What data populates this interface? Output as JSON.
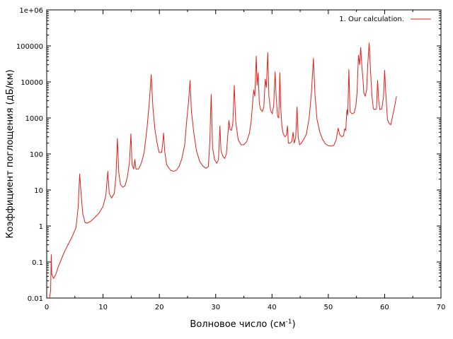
{
  "chart_data": {
    "type": "line",
    "title": "",
    "xlabel": "Волновое число (см",
    "xlabel_sup": "-1",
    "xlabel_close": ")",
    "ylabel": "Коэффициент поглощения (дБ/км)",
    "xlim": [
      0,
      70
    ],
    "ylim": [
      0.01,
      1000000
    ],
    "yscale": "log",
    "grid": false,
    "legend": "top-right",
    "x_ticks": [
      0,
      10,
      20,
      30,
      40,
      50,
      60,
      70
    ],
    "x_tick_labels": [
      "0",
      "10",
      "20",
      "30",
      "40",
      "50",
      "60",
      "70"
    ],
    "y_ticks": [
      0.01,
      0.1,
      1,
      10,
      100,
      1000,
      10000,
      100000,
      1000000
    ],
    "y_tick_labels": [
      "0.01",
      "0.1",
      "1",
      "10",
      "100",
      "1000",
      "10000",
      "100000",
      "1e+06"
    ],
    "series": [
      {
        "name": "1. Our calculation.",
        "color": "#e0201a",
        "points": [
          [
            0.5,
            0.01
          ],
          [
            0.7,
            0.016
          ],
          [
            0.8,
            0.16
          ],
          [
            0.9,
            0.045
          ],
          [
            1.2,
            0.035
          ],
          [
            1.6,
            0.045
          ],
          [
            2.0,
            0.07
          ],
          [
            2.5,
            0.11
          ],
          [
            3.0,
            0.17
          ],
          [
            3.5,
            0.25
          ],
          [
            4.0,
            0.35
          ],
          [
            4.5,
            0.5
          ],
          [
            5.2,
            0.9
          ],
          [
            5.6,
            3.5
          ],
          [
            5.85,
            28
          ],
          [
            6.1,
            8
          ],
          [
            6.4,
            2.2
          ],
          [
            6.8,
            1.25
          ],
          [
            7.2,
            1.2
          ],
          [
            7.8,
            1.35
          ],
          [
            8.5,
            1.7
          ],
          [
            9.3,
            2.3
          ],
          [
            10.0,
            3.5
          ],
          [
            10.5,
            7
          ],
          [
            10.85,
            33
          ],
          [
            11.1,
            8
          ],
          [
            11.5,
            6
          ],
          [
            12.0,
            8
          ],
          [
            12.3,
            25
          ],
          [
            12.55,
            270
          ],
          [
            12.8,
            30
          ],
          [
            13.1,
            14
          ],
          [
            13.5,
            12
          ],
          [
            13.9,
            13
          ],
          [
            14.3,
            22
          ],
          [
            14.7,
            60
          ],
          [
            14.95,
            360
          ],
          [
            15.15,
            50
          ],
          [
            15.45,
            38
          ],
          [
            15.65,
            70
          ],
          [
            15.85,
            38
          ],
          [
            16.3,
            38
          ],
          [
            16.8,
            55
          ],
          [
            17.3,
            110
          ],
          [
            17.8,
            500
          ],
          [
            18.2,
            2500
          ],
          [
            18.55,
            16000
          ],
          [
            18.85,
            2000
          ],
          [
            19.2,
            500
          ],
          [
            19.6,
            200
          ],
          [
            19.95,
            110
          ],
          [
            20.4,
            110
          ],
          [
            20.6,
            200
          ],
          [
            20.75,
            380
          ],
          [
            20.95,
            120
          ],
          [
            21.3,
            50
          ],
          [
            22.0,
            35
          ],
          [
            22.5,
            33
          ],
          [
            23.0,
            35
          ],
          [
            23.5,
            45
          ],
          [
            24.0,
            75
          ],
          [
            24.5,
            180
          ],
          [
            24.9,
            1000
          ],
          [
            25.2,
            3000
          ],
          [
            25.45,
            11000
          ],
          [
            25.7,
            1500
          ],
          [
            26.1,
            400
          ],
          [
            26.6,
            120
          ],
          [
            27.2,
            60
          ],
          [
            27.8,
            45
          ],
          [
            28.3,
            40
          ],
          [
            28.7,
            45
          ],
          [
            28.95,
            200
          ],
          [
            29.2,
            4500
          ],
          [
            29.45,
            150
          ],
          [
            29.8,
            70
          ],
          [
            30.2,
            55
          ],
          [
            30.5,
            70
          ],
          [
            30.75,
            600
          ],
          [
            30.95,
            120
          ],
          [
            31.3,
            85
          ],
          [
            31.6,
            75
          ],
          [
            31.9,
            100
          ],
          [
            32.1,
            250
          ],
          [
            32.35,
            850
          ],
          [
            32.55,
            480
          ],
          [
            32.8,
            450
          ],
          [
            33.05,
            700
          ],
          [
            33.3,
            8000
          ],
          [
            33.55,
            800
          ],
          [
            34.0,
            250
          ],
          [
            34.5,
            180
          ],
          [
            35.0,
            180
          ],
          [
            35.5,
            220
          ],
          [
            36.0,
            380
          ],
          [
            36.3,
            800
          ],
          [
            36.55,
            2500
          ],
          [
            36.75,
            6000
          ],
          [
            36.95,
            4000
          ],
          [
            37.2,
            52000
          ],
          [
            37.35,
            8000
          ],
          [
            37.55,
            18000
          ],
          [
            37.75,
            2500
          ],
          [
            38.0,
            1700
          ],
          [
            38.3,
            1500
          ],
          [
            38.55,
            2000
          ],
          [
            38.8,
            12000
          ],
          [
            39.0,
            7000
          ],
          [
            39.25,
            65000
          ],
          [
            39.45,
            4000
          ],
          [
            39.75,
            1600
          ],
          [
            40.05,
            1300
          ],
          [
            40.3,
            2200
          ],
          [
            40.55,
            19000
          ],
          [
            40.75,
            3500
          ],
          [
            41.0,
            1100
          ],
          [
            41.2,
            1000
          ],
          [
            41.4,
            18000
          ],
          [
            41.55,
            2000
          ],
          [
            41.75,
            600
          ],
          [
            42.0,
            360
          ],
          [
            42.3,
            300
          ],
          [
            42.55,
            330
          ],
          [
            42.75,
            600
          ],
          [
            42.9,
            200
          ],
          [
            43.2,
            200
          ],
          [
            43.5,
            220
          ],
          [
            43.75,
            400
          ],
          [
            43.95,
            200
          ],
          [
            44.2,
            280
          ],
          [
            44.45,
            2000
          ],
          [
            44.65,
            300
          ],
          [
            44.9,
            180
          ],
          [
            45.2,
            200
          ],
          [
            45.6,
            250
          ],
          [
            46.1,
            350
          ],
          [
            46.6,
            1000
          ],
          [
            47.0,
            5000
          ],
          [
            47.35,
            45000
          ],
          [
            47.65,
            4000
          ],
          [
            48.0,
            900
          ],
          [
            48.5,
            400
          ],
          [
            49.0,
            250
          ],
          [
            49.5,
            190
          ],
          [
            50.0,
            170
          ],
          [
            50.5,
            165
          ],
          [
            51.0,
            175
          ],
          [
            51.4,
            250
          ],
          [
            51.75,
            520
          ],
          [
            52.0,
            350
          ],
          [
            52.4,
            300
          ],
          [
            52.7,
            320
          ],
          [
            52.9,
            500
          ],
          [
            53.1,
            450
          ],
          [
            53.3,
            1700
          ],
          [
            53.45,
            1200
          ],
          [
            53.65,
            22000
          ],
          [
            53.85,
            1500
          ],
          [
            54.2,
            1300
          ],
          [
            54.6,
            1400
          ],
          [
            54.9,
            2200
          ],
          [
            55.1,
            5000
          ],
          [
            55.35,
            55000
          ],
          [
            55.55,
            30000
          ],
          [
            55.75,
            90000
          ],
          [
            55.95,
            28000
          ],
          [
            56.15,
            12000
          ],
          [
            56.3,
            5000
          ],
          [
            56.55,
            4000
          ],
          [
            56.8,
            6000
          ],
          [
            57.0,
            30000
          ],
          [
            57.25,
            120000
          ],
          [
            57.5,
            20000
          ],
          [
            57.75,
            4000
          ],
          [
            58.0,
            1800
          ],
          [
            58.3,
            1700
          ],
          [
            58.55,
            1800
          ],
          [
            58.75,
            11000
          ],
          [
            58.95,
            3000
          ],
          [
            59.15,
            1700
          ],
          [
            59.5,
            1800
          ],
          [
            59.8,
            4000
          ],
          [
            60.0,
            21000
          ],
          [
            60.2,
            5000
          ],
          [
            60.5,
            900
          ],
          [
            60.8,
            700
          ],
          [
            61.1,
            650
          ],
          [
            61.4,
            1100
          ],
          [
            61.8,
            2200
          ],
          [
            62.1,
            4000
          ]
        ]
      }
    ]
  }
}
